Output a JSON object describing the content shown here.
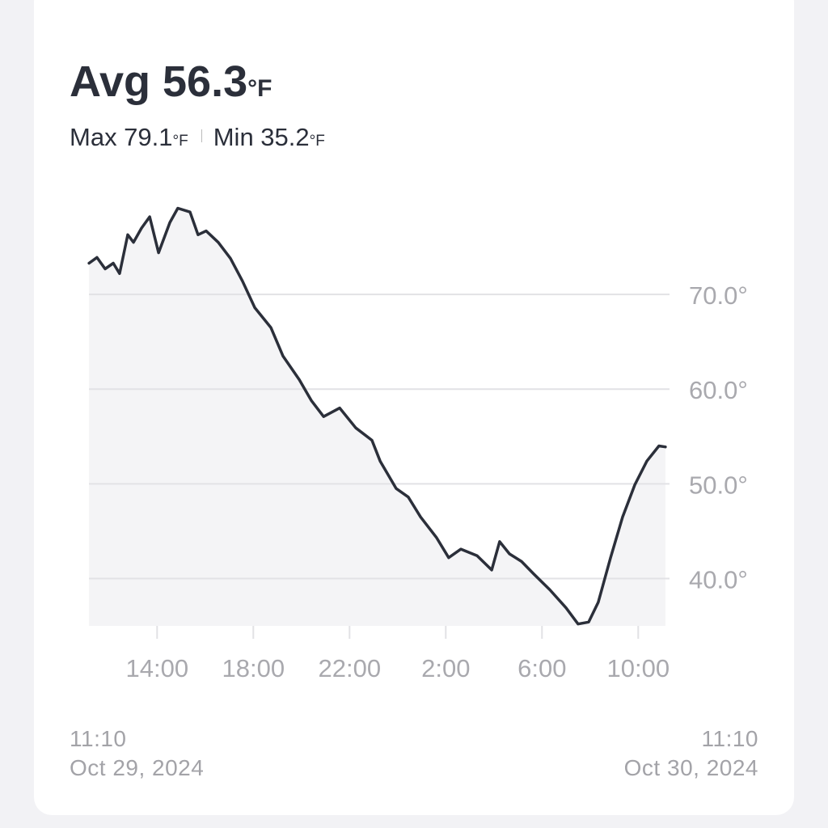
{
  "header": {
    "avg": "Avg 56.3",
    "avg_unit": "°F",
    "max": "Max 79.1",
    "max_unit": "°F",
    "min": "Min 35.2",
    "min_unit": "°F"
  },
  "chart_data": {
    "type": "line",
    "x": [
      11.17,
      11.5,
      11.84,
      12.18,
      12.44,
      12.78,
      13.02,
      13.35,
      13.69,
      14.06,
      14.53,
      14.86,
      15.37,
      15.7,
      16.04,
      16.54,
      17.05,
      17.55,
      18.06,
      18.73,
      19.23,
      19.91,
      20.41,
      20.92,
      21.59,
      22.26,
      22.93,
      23.27,
      23.94,
      24.44,
      24.95,
      25.62,
      26.12,
      26.63,
      27.3,
      27.91,
      28.24,
      28.65,
      29.15,
      29.65,
      30.33,
      31.0,
      31.5,
      31.94,
      32.34,
      32.85,
      33.35,
      33.86,
      34.36,
      34.86,
      35.13
    ],
    "series": [
      {
        "color": "#2b2f3a",
        "values": [
          73.3,
          73.9,
          72.7,
          73.3,
          72.2,
          76.3,
          75.5,
          77.0,
          78.2,
          74.4,
          77.6,
          79.1,
          78.7,
          76.3,
          76.7,
          75.5,
          73.8,
          71.4,
          68.6,
          66.5,
          63.5,
          61.0,
          58.8,
          57.1,
          58.0,
          55.9,
          54.6,
          52.4,
          49.5,
          48.6,
          46.5,
          44.3,
          42.2,
          43.1,
          42.4,
          40.9,
          43.9,
          42.6,
          41.8,
          40.5,
          38.8,
          36.9,
          35.2,
          35.4,
          37.5,
          42.2,
          46.5,
          49.9,
          52.4,
          54.0,
          53.9
        ]
      }
    ],
    "xlim": [
      11.1667,
      35.1667
    ],
    "xticks": [
      {
        "value": 14,
        "label": "14:00"
      },
      {
        "value": 18,
        "label": "18:00"
      },
      {
        "value": 22,
        "label": "22:00"
      },
      {
        "value": 26,
        "label": "2:00"
      },
      {
        "value": 30,
        "label": "6:00"
      },
      {
        "value": 34,
        "label": "10:00"
      }
    ],
    "ylim": [
      35,
      80
    ],
    "yticks": [
      {
        "value": 40,
        "label": "40.0°"
      },
      {
        "value": 50,
        "label": "50.0°"
      },
      {
        "value": 60,
        "label": "60.0°"
      },
      {
        "value": 70,
        "label": "70.0°"
      }
    ],
    "grid": true,
    "fill": "#f4f4f6"
  },
  "footer": {
    "start_time": "11:10",
    "start_date": "Oct 29, 2024",
    "end_time": "11:10",
    "end_date": "Oct 30, 2024"
  }
}
